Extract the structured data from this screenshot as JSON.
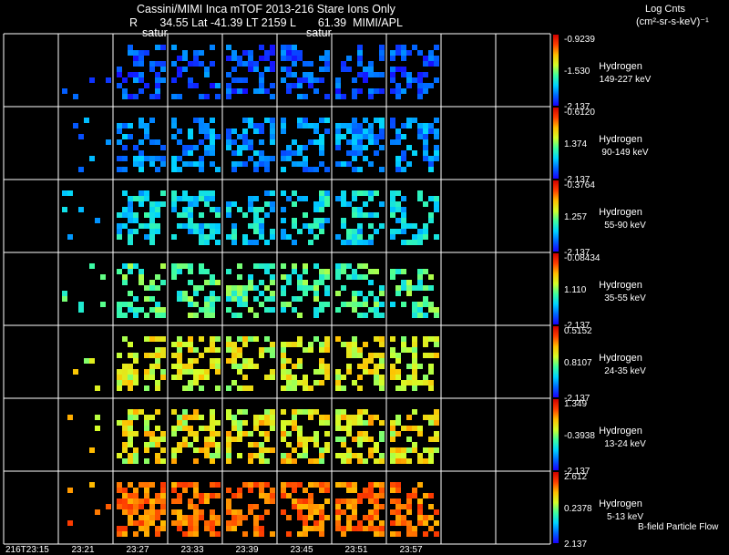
{
  "header": {
    "title": "Cassini/MIMI Inca mTOF  2013-216   Stare   Ions Only",
    "geo_line": "R       34.55 Lat -41.39 LT 2159 L       61.39  MIMI/APL",
    "satur_left": "satur",
    "satur_mid": "satur",
    "units_line1": "Log Cnts",
    "units_line2": "(cm²-sr-s-keV)⁻¹"
  },
  "footer": {
    "flow_label": "B-field Particle Flow"
  },
  "chart_data": {
    "type": "heatmap",
    "time_labels": [
      "216T23:15",
      "23:21",
      "23:27",
      "23:33",
      "23:39",
      "23:45",
      "23:51",
      "23:57"
    ],
    "columns": 10,
    "rows": [
      {
        "species": "Hydrogen",
        "energy": "149-227 keV",
        "cmax": "-0.9239",
        "cmid": "-1.530",
        "cmin": "-2.137",
        "level": 0.12,
        "density": 0.42,
        "spread": 0.1
      },
      {
        "species": "Hydrogen",
        "energy": "90-149 keV",
        "cmax": "-0.6120",
        "cmid": "1.374",
        "cmin": "-2.137",
        "level": 0.2,
        "density": 0.45,
        "spread": 0.1
      },
      {
        "species": "Hydrogen",
        "energy": "55-90 keV",
        "cmax": "-0.3764",
        "cmid": "1.257",
        "cmin": "-2.137",
        "level": 0.3,
        "density": 0.45,
        "spread": 0.12
      },
      {
        "species": "Hydrogen",
        "energy": "35-55 keV",
        "cmax": "-0.08434",
        "cmid": "1.110",
        "cmin": "-2.137",
        "level": 0.42,
        "density": 0.45,
        "spread": 0.12
      },
      {
        "species": "Hydrogen",
        "energy": "24-35 keV",
        "cmax": "0.5152",
        "cmid": "0.8107",
        "cmin": "-2.137",
        "level": 0.6,
        "density": 0.45,
        "spread": 0.12
      },
      {
        "species": "Hydrogen",
        "energy": "13-24 keV",
        "cmax": "1.349",
        "cmid": "-0.3938",
        "cmin": "-2.137",
        "level": 0.62,
        "density": 0.55,
        "spread": 0.14
      },
      {
        "species": "Hydrogen",
        "energy": "5-13 keV",
        "cmax": "2.612",
        "cmid": "0.2378",
        "cmin": "2.137",
        "level": 0.8,
        "density": 0.55,
        "spread": 0.08
      }
    ],
    "populated_columns": [
      1,
      2,
      3,
      4,
      5,
      6,
      7
    ],
    "colormap": [
      "#1a00ff",
      "#0066ff",
      "#00d4ff",
      "#40ff9f",
      "#d4ff2a",
      "#ffc000",
      "#ff4000",
      "#d10000"
    ],
    "grid": true
  }
}
